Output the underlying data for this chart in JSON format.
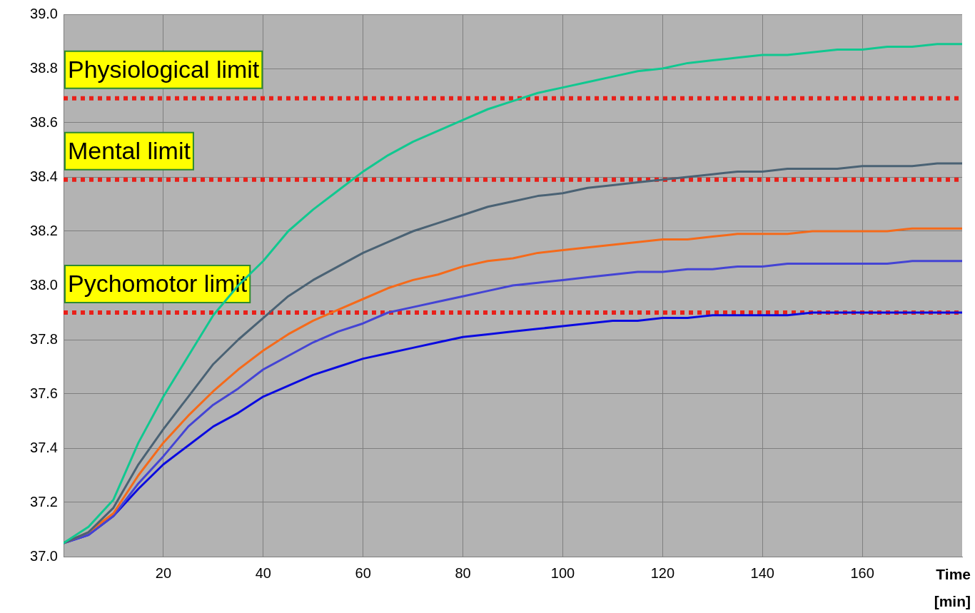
{
  "chart_data": {
    "type": "line",
    "xlabel": "Time [min]",
    "x": [
      0,
      5,
      10,
      15,
      20,
      25,
      30,
      35,
      40,
      45,
      50,
      55,
      60,
      65,
      70,
      75,
      80,
      85,
      90,
      95,
      100,
      105,
      110,
      115,
      120,
      125,
      130,
      135,
      140,
      145,
      150,
      155,
      160,
      165,
      170,
      175,
      180
    ],
    "series": [
      {
        "color": "#10c890",
        "values": [
          37.05,
          37.11,
          37.21,
          37.42,
          37.59,
          37.74,
          37.89,
          38.0,
          38.09,
          38.2,
          38.28,
          38.35,
          38.42,
          38.48,
          38.53,
          38.57,
          38.61,
          38.65,
          38.68,
          38.71,
          38.73,
          38.75,
          38.77,
          38.79,
          38.8,
          38.82,
          38.83,
          38.84,
          38.85,
          38.85,
          38.86,
          38.87,
          38.87,
          38.88,
          38.88,
          38.89,
          38.89
        ]
      },
      {
        "color": "#4a6274",
        "values": [
          37.05,
          37.09,
          37.18,
          37.34,
          37.47,
          37.59,
          37.71,
          37.8,
          37.88,
          37.96,
          38.02,
          38.07,
          38.12,
          38.16,
          38.2,
          38.23,
          38.26,
          38.29,
          38.31,
          38.33,
          38.34,
          38.36,
          38.37,
          38.38,
          38.39,
          38.4,
          38.41,
          38.42,
          38.42,
          38.43,
          38.43,
          38.43,
          38.44,
          38.44,
          38.44,
          38.45,
          38.45
        ]
      },
      {
        "color": "#f56a1a",
        "values": [
          37.05,
          37.09,
          37.16,
          37.3,
          37.42,
          37.52,
          37.61,
          37.69,
          37.76,
          37.82,
          37.87,
          37.91,
          37.95,
          37.99,
          38.02,
          38.04,
          38.07,
          38.09,
          38.1,
          38.12,
          38.13,
          38.14,
          38.15,
          38.16,
          38.17,
          38.17,
          38.18,
          38.19,
          38.19,
          38.19,
          38.2,
          38.2,
          38.2,
          38.2,
          38.21,
          38.21,
          38.21
        ]
      },
      {
        "color": "#4444d4",
        "values": [
          37.05,
          37.08,
          37.15,
          37.27,
          37.37,
          37.48,
          37.56,
          37.62,
          37.69,
          37.74,
          37.79,
          37.83,
          37.86,
          37.9,
          37.92,
          37.94,
          37.96,
          37.98,
          38.0,
          38.01,
          38.02,
          38.03,
          38.04,
          38.05,
          38.05,
          38.06,
          38.06,
          38.07,
          38.07,
          38.08,
          38.08,
          38.08,
          38.08,
          38.08,
          38.09,
          38.09,
          38.09
        ]
      },
      {
        "color": "#0a0ae0",
        "values": [
          37.05,
          37.08,
          37.15,
          37.25,
          37.34,
          37.41,
          37.48,
          37.53,
          37.59,
          37.63,
          37.67,
          37.7,
          37.73,
          37.75,
          37.77,
          37.79,
          37.81,
          37.82,
          37.83,
          37.84,
          37.85,
          37.86,
          37.87,
          37.87,
          37.88,
          37.88,
          37.89,
          37.89,
          37.89,
          37.89,
          37.9,
          37.9,
          37.9,
          37.9,
          37.9,
          37.9,
          37.9
        ]
      }
    ],
    "xlim": [
      0,
      180
    ],
    "xticks": [
      20,
      40,
      60,
      80,
      100,
      120,
      140,
      160
    ],
    "ylim": [
      37.0,
      39.0
    ],
    "yticks": [
      {
        "value": 37,
        "label": "37.0"
      },
      {
        "value": 37.2,
        "label": "37.2"
      },
      {
        "value": 37.4,
        "label": "37.4"
      },
      {
        "value": 37.6,
        "label": "37.6"
      },
      {
        "value": 37.8,
        "label": "37.8"
      },
      {
        "value": 38,
        "label": "38.0"
      },
      {
        "value": 38.2,
        "label": "38.2"
      },
      {
        "value": 38.4,
        "label": "38.4"
      },
      {
        "value": 38.6,
        "label": "38.6"
      },
      {
        "value": 38.8,
        "label": "38.8"
      },
      {
        "value": 39,
        "label": "39.0"
      }
    ],
    "ref_lines": [
      {
        "axis": "y",
        "value": 38.69,
        "label": "Physiological limit",
        "color": "#e8201a",
        "line_style": "dotted"
      },
      {
        "axis": "y",
        "value": 38.39,
        "label": "Mental limit",
        "color": "#e8201a",
        "line_style": "dotted"
      },
      {
        "axis": "y",
        "value": 37.9,
        "label": "Pychomotor limit",
        "color": "#e8201a",
        "line_style": "dotted"
      }
    ],
    "grid": true,
    "legend": false,
    "marker": "none",
    "line_style": "solid"
  }
}
